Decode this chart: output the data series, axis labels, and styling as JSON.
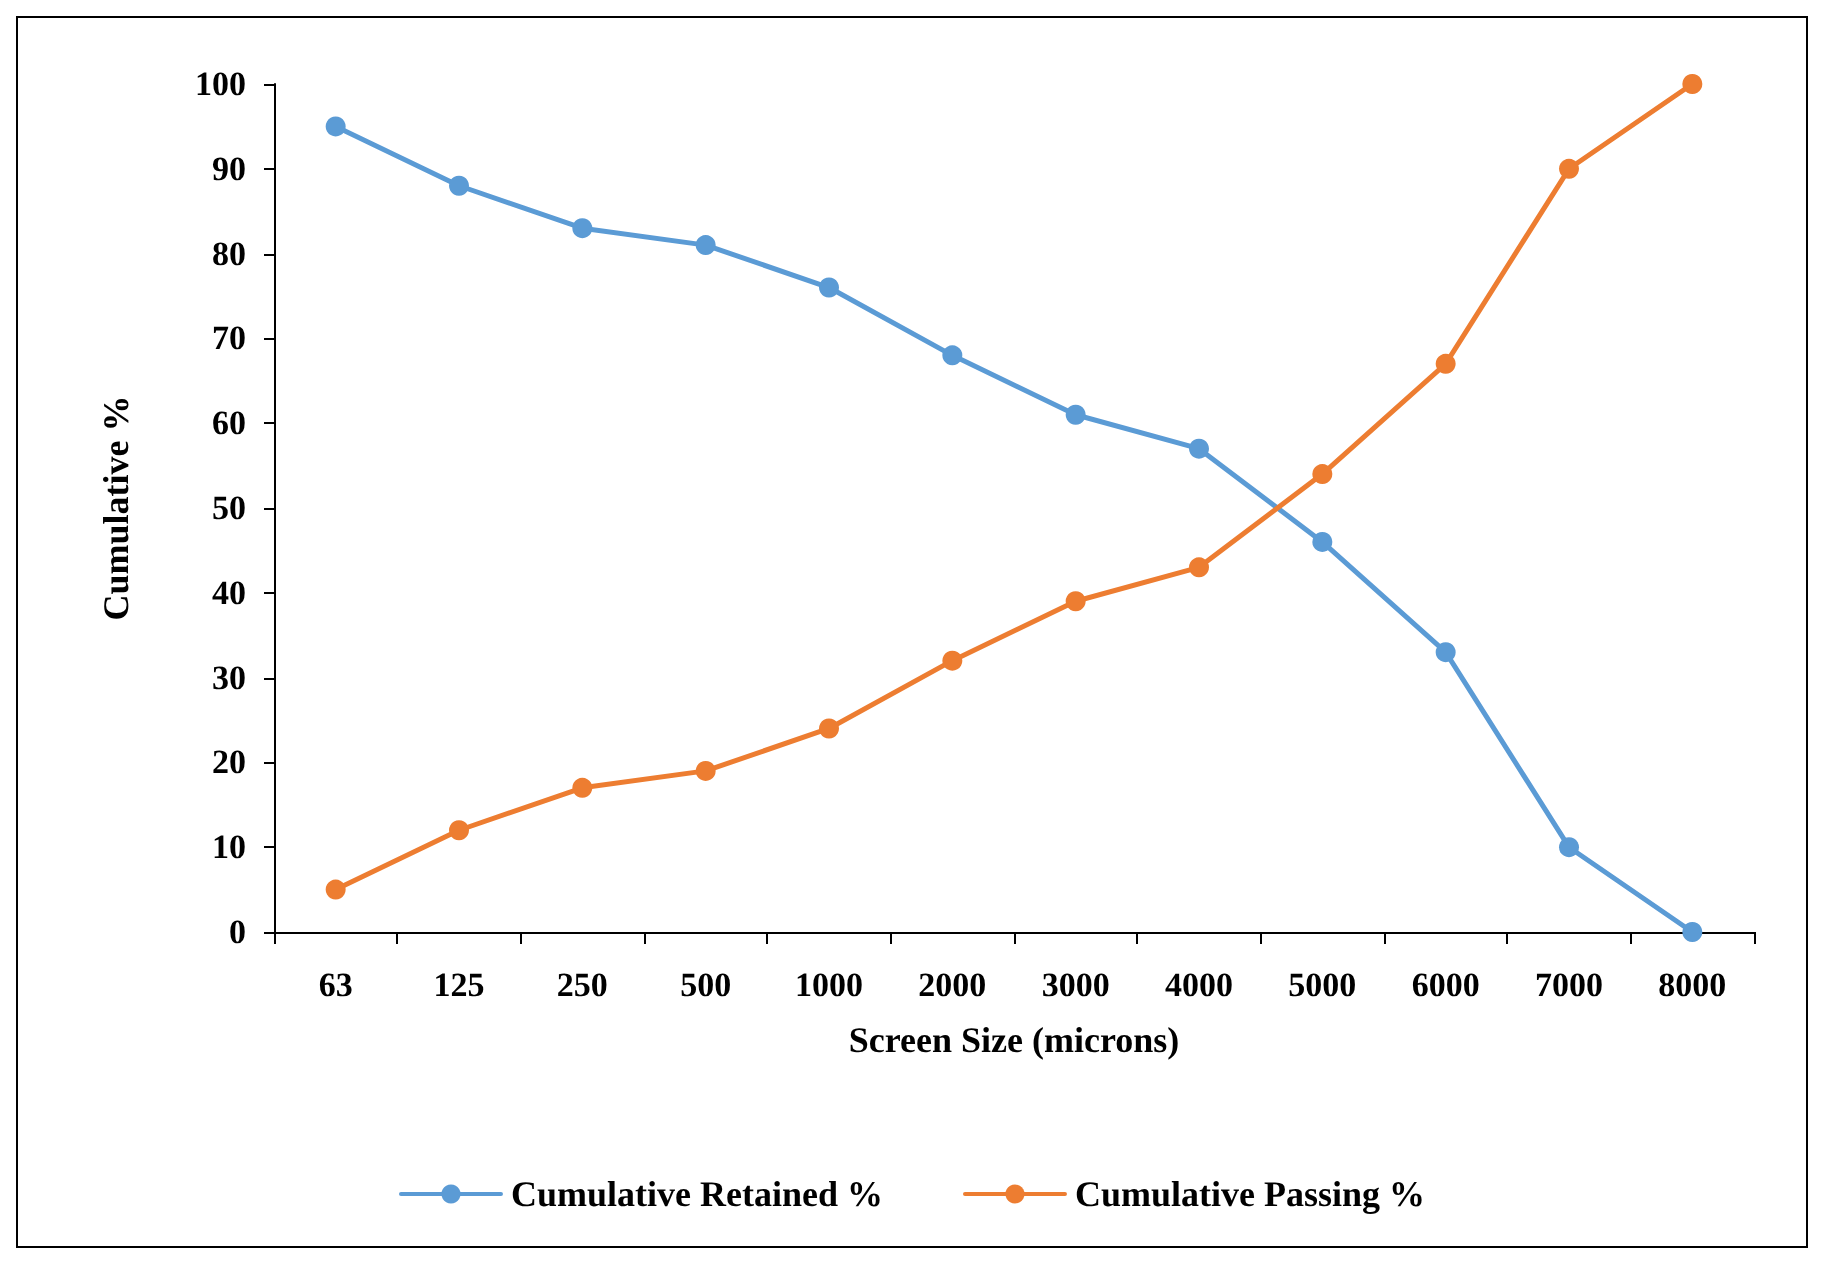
{
  "chart_data": {
    "type": "line",
    "xlabel": "Screen Size (microns)",
    "ylabel": "Cumulative %",
    "categories": [
      "63",
      "125",
      "250",
      "500",
      "1000",
      "2000",
      "3000",
      "4000",
      "5000",
      "6000",
      "7000",
      "8000"
    ],
    "series": [
      {
        "name": "Cumulative Retained %",
        "color": "#5b9bd5",
        "values": [
          95,
          88,
          83,
          81,
          76,
          68,
          61,
          57,
          46,
          33,
          10,
          0
        ]
      },
      {
        "name": "Cumulative Passing %",
        "color": "#ed7d31",
        "values": [
          5,
          12,
          17,
          19,
          24,
          32,
          39,
          43,
          54,
          67,
          90,
          100
        ]
      }
    ],
    "ylim": [
      0,
      100
    ],
    "yticks": [
      0,
      10,
      20,
      30,
      40,
      50,
      60,
      70,
      80,
      90,
      100
    ],
    "grid": false,
    "legend": "bottom",
    "marker": "circle",
    "line_style": "solid"
  }
}
